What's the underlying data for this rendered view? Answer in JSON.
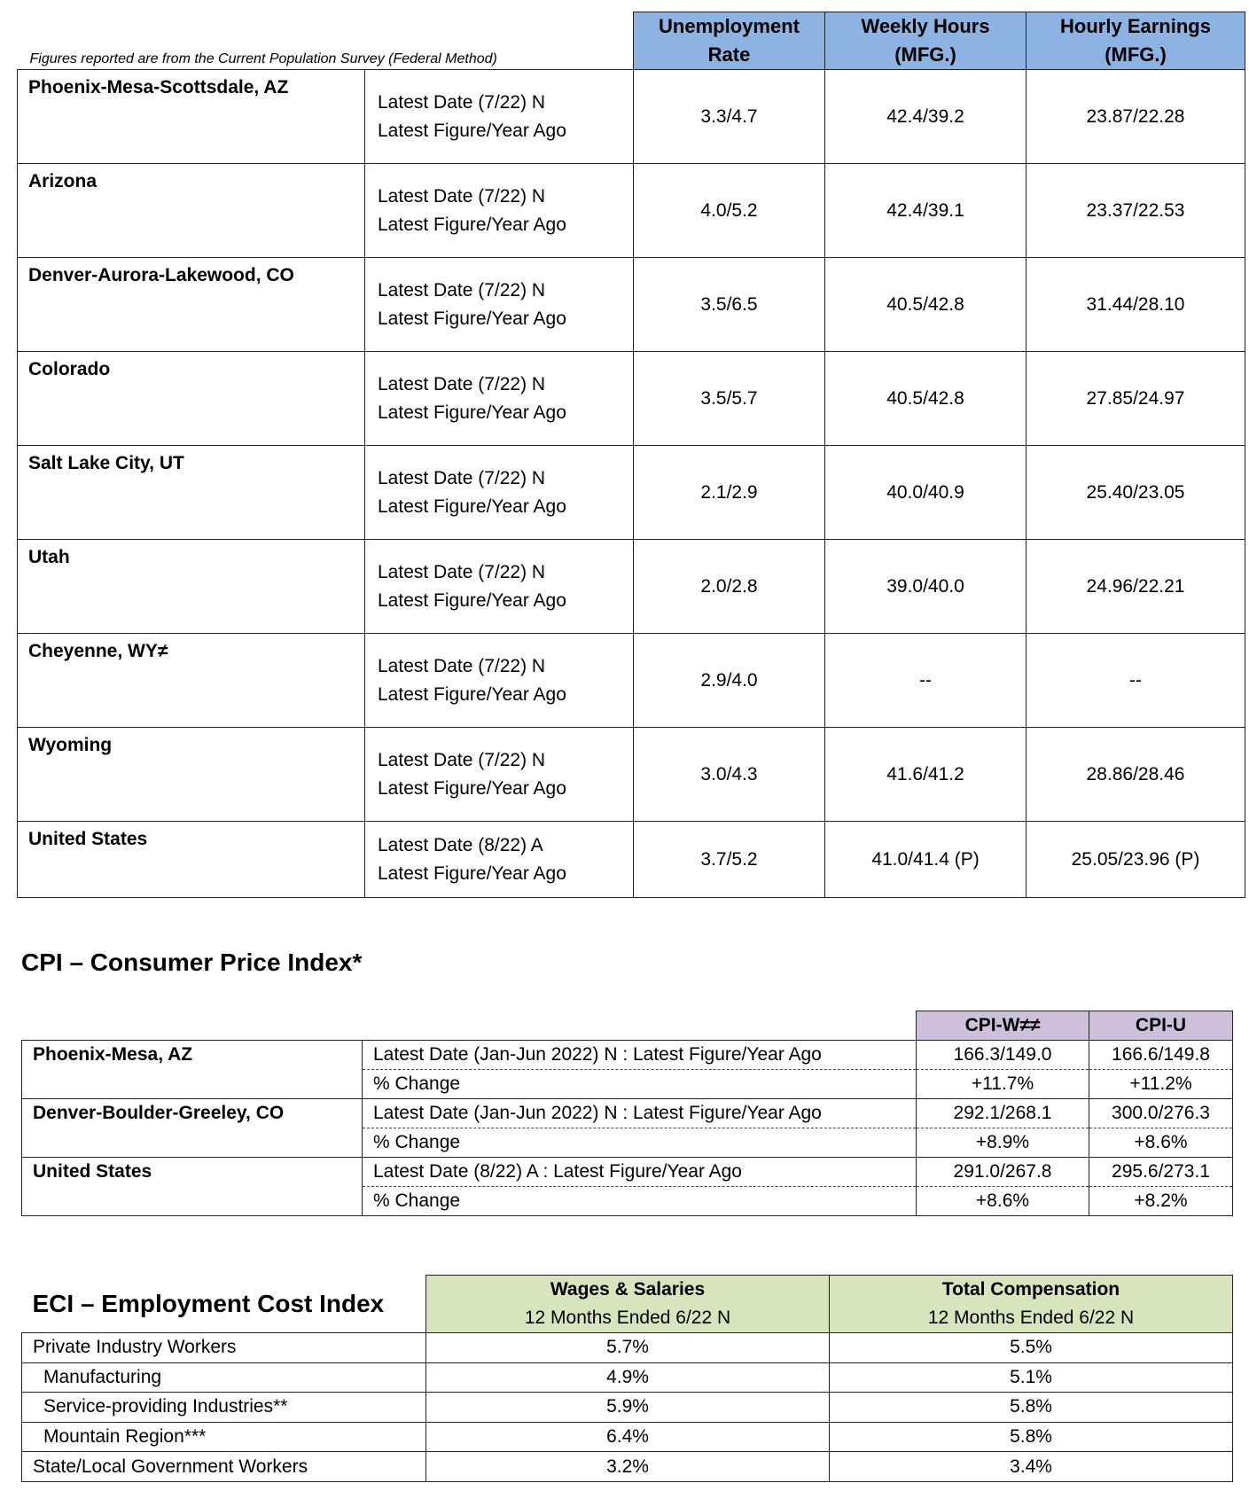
{
  "note": "Figures reported are from the Current Population Survey (Federal Method)",
  "employment": {
    "headers": [
      "Unemployment Rate",
      "Weekly Hours (MFG.)",
      "Hourly Earnings (MFG.)"
    ],
    "rows": [
      {
        "area": "Phoenix-Mesa-Scottsdale, AZ",
        "date": "Latest Date (7/22) N",
        "label": "Latest Figure/Year Ago",
        "values": [
          "3.3/4.7",
          "42.4/39.2",
          "23.87/22.28"
        ]
      },
      {
        "area": "Arizona",
        "date": "Latest Date (7/22) N",
        "label": "Latest Figure/Year Ago",
        "values": [
          "4.0/5.2",
          "42.4/39.1",
          "23.37/22.53"
        ]
      },
      {
        "area": "Denver-Aurora-Lakewood, CO",
        "date": "Latest Date (7/22) N",
        "label": "Latest Figure/Year Ago",
        "values": [
          "3.5/6.5",
          "40.5/42.8",
          "31.44/28.10"
        ]
      },
      {
        "area": "Colorado",
        "date": "Latest Date (7/22) N",
        "label": "Latest Figure/Year Ago",
        "values": [
          "3.5/5.7",
          "40.5/42.8",
          "27.85/24.97"
        ]
      },
      {
        "area": "Salt Lake City, UT",
        "date": "Latest Date (7/22) N",
        "label": "Latest Figure/Year Ago",
        "values": [
          "2.1/2.9",
          "40.0/40.9",
          "25.40/23.05"
        ]
      },
      {
        "area": "Utah",
        "date": "Latest Date (7/22) N",
        "label": "Latest Figure/Year Ago",
        "values": [
          "2.0/2.8",
          "39.0/40.0",
          "24.96/22.21"
        ]
      },
      {
        "area": "Cheyenne, WY≠",
        "date": "Latest Date (7/22) N",
        "label": "Latest Figure/Year Ago",
        "values": [
          "2.9/4.0",
          "--",
          "--"
        ]
      },
      {
        "area": "Wyoming",
        "date": "Latest Date (7/22) N",
        "label": "Latest Figure/Year Ago",
        "values": [
          "3.0/4.3",
          "41.6/41.2",
          "28.86/28.46"
        ]
      },
      {
        "area": "United States",
        "date": "Latest Date (8/22) A",
        "label": "Latest Figure/Year Ago",
        "values": [
          "3.7/5.2",
          "41.0/41.4 (P)",
          "25.05/23.96 (P)"
        ]
      }
    ]
  },
  "cpi": {
    "title": "CPI – Consumer Price Index*",
    "headers": [
      "CPI-W≠≠",
      "CPI-U"
    ],
    "rows": [
      {
        "area": "Phoenix-Mesa, AZ",
        "latest": "Latest Date (Jan-Jun 2022) N : Latest Figure/Year Ago",
        "latest_values": [
          "166.3/149.0",
          "166.6/149.8"
        ],
        "change": "% Change",
        "change_values": [
          "+11.7%",
          "+11.2%"
        ]
      },
      {
        "area": "Denver-Boulder-Greeley, CO",
        "latest": "Latest Date (Jan-Jun 2022) N : Latest Figure/Year Ago",
        "latest_values": [
          "292.1/268.1",
          "300.0/276.3"
        ],
        "change": "% Change",
        "change_values": [
          "+8.9%",
          "+8.6%"
        ]
      },
      {
        "area": "United States",
        "latest": "Latest Date (8/22) A : Latest Figure/Year Ago",
        "latest_values": [
          "291.0/267.8",
          "295.6/273.1"
        ],
        "change": "% Change",
        "change_values": [
          "+8.6%",
          "+8.2%"
        ]
      }
    ]
  },
  "eci": {
    "title": "ECI – Employment Cost Index",
    "headers": [
      {
        "name": "Wages & Salaries",
        "sub": "12 Months Ended 6/22 N"
      },
      {
        "name": "Total Compensation",
        "sub": "12 Months Ended 6/22 N"
      }
    ],
    "rows": [
      {
        "label": "Private Industry Workers",
        "values": [
          "5.7%",
          "5.5%"
        ]
      },
      {
        "label": "Manufacturing",
        "values": [
          "4.9%",
          "5.1%"
        ]
      },
      {
        "label": "Service-providing Industries**",
        "values": [
          "5.9%",
          "5.8%"
        ]
      },
      {
        "label": "Mountain Region***",
        "values": [
          "6.4%",
          "5.8%"
        ]
      },
      {
        "label": "State/Local Government Workers",
        "values": [
          "3.2%",
          "3.4%"
        ]
      }
    ]
  }
}
